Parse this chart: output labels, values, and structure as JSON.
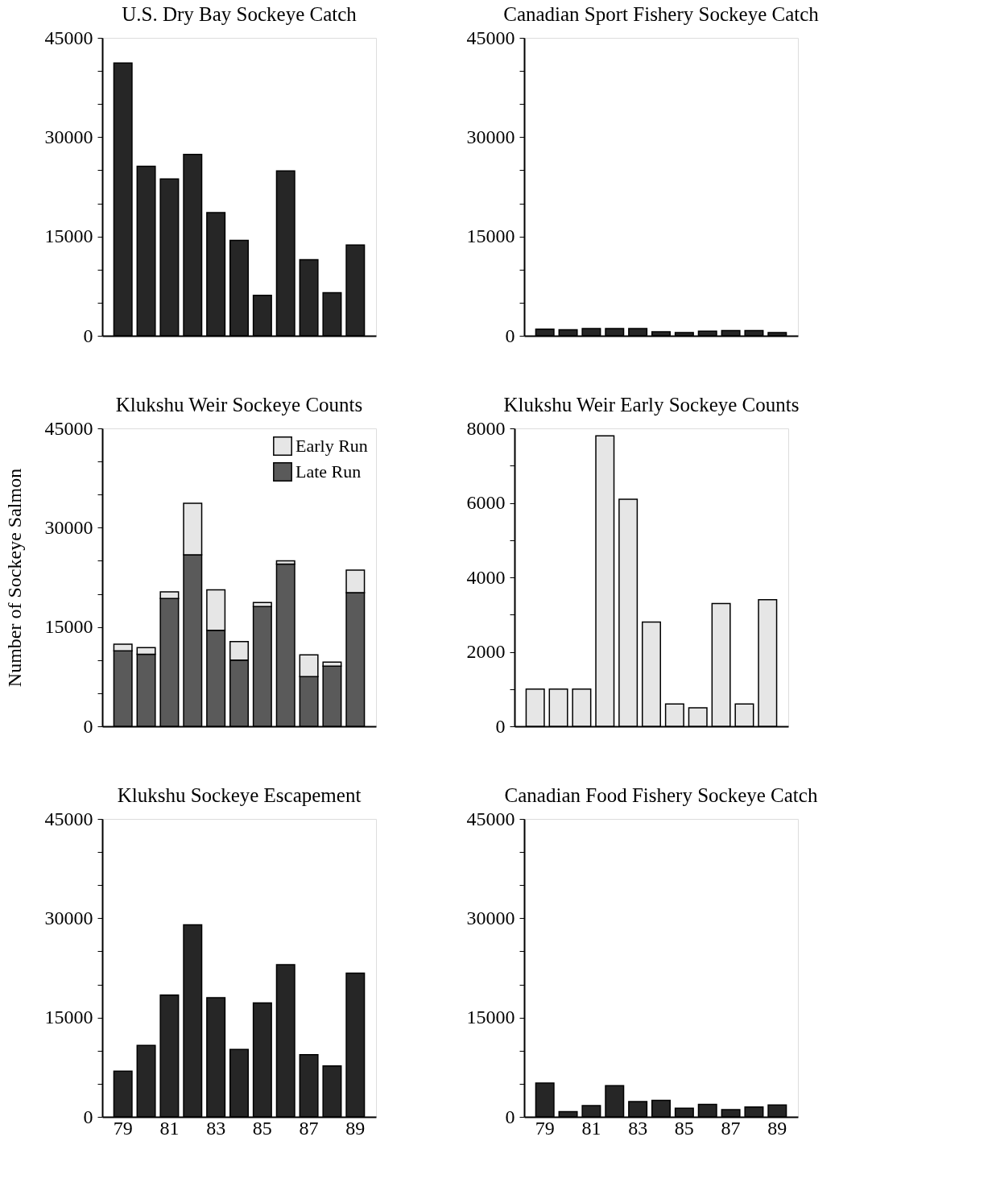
{
  "chart_data": [
    {
      "type": "bar",
      "title": "U.S. Dry Bay Sockeye Catch",
      "categories": [
        "79",
        null,
        "81",
        null,
        "83",
        null,
        "85",
        null,
        "87",
        null,
        "89"
      ],
      "tick_labels": "y",
      "series": [
        {
          "color": "#262626",
          "values": [
            41200,
            25600,
            23700,
            27400,
            18600,
            14400,
            6100,
            24900,
            11500,
            6500,
            13700
          ]
        }
      ],
      "ylim": [
        0,
        45000
      ],
      "yticks": [
        0,
        {
          "value": 5000,
          "label": null
        },
        {
          "value": 10000,
          "label": null
        },
        15000,
        {
          "value": 20000,
          "label": null
        },
        {
          "value": 25000,
          "label": null
        },
        30000,
        {
          "value": 35000,
          "label": null
        },
        {
          "value": 40000,
          "label": null
        },
        45000
      ],
      "grid": false,
      "legend": false
    },
    {
      "type": "bar",
      "title": "Canadian Sport Fishery Sockeye Catch",
      "categories": [
        "79",
        null,
        "81",
        null,
        "83",
        null,
        "85",
        null,
        "87",
        null,
        "89"
      ],
      "tick_labels": "y",
      "series": [
        {
          "color": "#262626",
          "values": [
            1000,
            900,
            1100,
            1100,
            1100,
            600,
            500,
            700,
            800,
            800,
            500
          ]
        }
      ],
      "ylim": [
        0,
        45000
      ],
      "yticks": [
        0,
        {
          "value": 5000,
          "label": null
        },
        {
          "value": 10000,
          "label": null
        },
        15000,
        {
          "value": 20000,
          "label": null
        },
        {
          "value": 25000,
          "label": null
        },
        30000,
        {
          "value": 35000,
          "label": null
        },
        {
          "value": 40000,
          "label": null
        },
        45000
      ],
      "grid": false,
      "legend": false
    },
    {
      "type": "bar",
      "title": "Klukshu Weir Sockeye Counts",
      "ylabel": "Number of Sockeye Salmon",
      "categories": [
        "79",
        null,
        "81",
        null,
        "83",
        null,
        "85",
        null,
        "87",
        null,
        "89"
      ],
      "tick_labels": "y",
      "stacked": true,
      "series": [
        {
          "name": "Late Run",
          "color": "#5a5a5a",
          "values": [
            11400,
            10900,
            19300,
            25900,
            14500,
            10000,
            18100,
            24500,
            7500,
            9100,
            20200
          ]
        },
        {
          "name": "Early Run",
          "color": "#e6e6e6",
          "values": [
            1000,
            1000,
            1000,
            7800,
            6100,
            2800,
            600,
            500,
            3300,
            600,
            3400
          ]
        }
      ],
      "ylim": [
        0,
        45000
      ],
      "yticks": [
        0,
        {
          "value": 5000,
          "label": null
        },
        {
          "value": 10000,
          "label": null
        },
        15000,
        {
          "value": 20000,
          "label": null
        },
        {
          "value": 25000,
          "label": null
        },
        30000,
        {
          "value": 35000,
          "label": null
        },
        {
          "value": 40000,
          "label": null
        },
        45000
      ],
      "grid": false,
      "legend": "top right"
    },
    {
      "type": "bar",
      "title": "Klukshu Weir Early Sockeye Counts",
      "categories": [
        "79",
        null,
        "81",
        null,
        "83",
        null,
        "85",
        null,
        "87",
        null,
        "89"
      ],
      "tick_labels": "y",
      "series": [
        {
          "color": "#e6e6e6",
          "values": [
            1000,
            1000,
            1000,
            7800,
            6100,
            2800,
            600,
            500,
            3300,
            600,
            3400
          ]
        }
      ],
      "ylim": [
        0,
        8000
      ],
      "yticks": [
        0,
        {
          "value": 1000,
          "label": null
        },
        2000,
        {
          "value": 3000,
          "label": null
        },
        4000,
        {
          "value": 5000,
          "label": null
        },
        6000,
        {
          "value": 7000,
          "label": null
        },
        8000
      ],
      "grid": false,
      "legend": false
    },
    {
      "type": "bar",
      "title": "Klukshu Sockeye Escapement",
      "categories": [
        "79",
        null,
        "81",
        null,
        "83",
        null,
        "85",
        null,
        "87",
        null,
        "89"
      ],
      "series": [
        {
          "color": "#262626",
          "values": [
            6900,
            10800,
            18400,
            29000,
            18000,
            10200,
            17200,
            23000,
            9400,
            7700,
            21700
          ]
        }
      ],
      "ylim": [
        0,
        45000
      ],
      "yticks": [
        0,
        {
          "value": 5000,
          "label": null
        },
        {
          "value": 10000,
          "label": null
        },
        15000,
        {
          "value": 20000,
          "label": null
        },
        {
          "value": 25000,
          "label": null
        },
        30000,
        {
          "value": 35000,
          "label": null
        },
        {
          "value": 40000,
          "label": null
        },
        45000
      ],
      "grid": false,
      "legend": false
    },
    {
      "type": "bar",
      "title": "Canadian Food Fishery Sockeye Catch",
      "categories": [
        "79",
        null,
        "81",
        null,
        "83",
        null,
        "85",
        null,
        "87",
        null,
        "89"
      ],
      "series": [
        {
          "color": "#262626",
          "values": [
            5100,
            800,
            1700,
            4700,
            2300,
            2500,
            1300,
            1900,
            1100,
            1500,
            1800
          ]
        }
      ],
      "ylim": [
        0,
        45000
      ],
      "yticks": [
        0,
        {
          "value": 5000,
          "label": null
        },
        {
          "value": 10000,
          "label": null
        },
        15000,
        {
          "value": 20000,
          "label": null
        },
        {
          "value": 25000,
          "label": null
        },
        30000,
        {
          "value": 35000,
          "label": null
        },
        {
          "value": 40000,
          "label": null
        },
        45000
      ],
      "grid": false,
      "legend": false
    }
  ]
}
